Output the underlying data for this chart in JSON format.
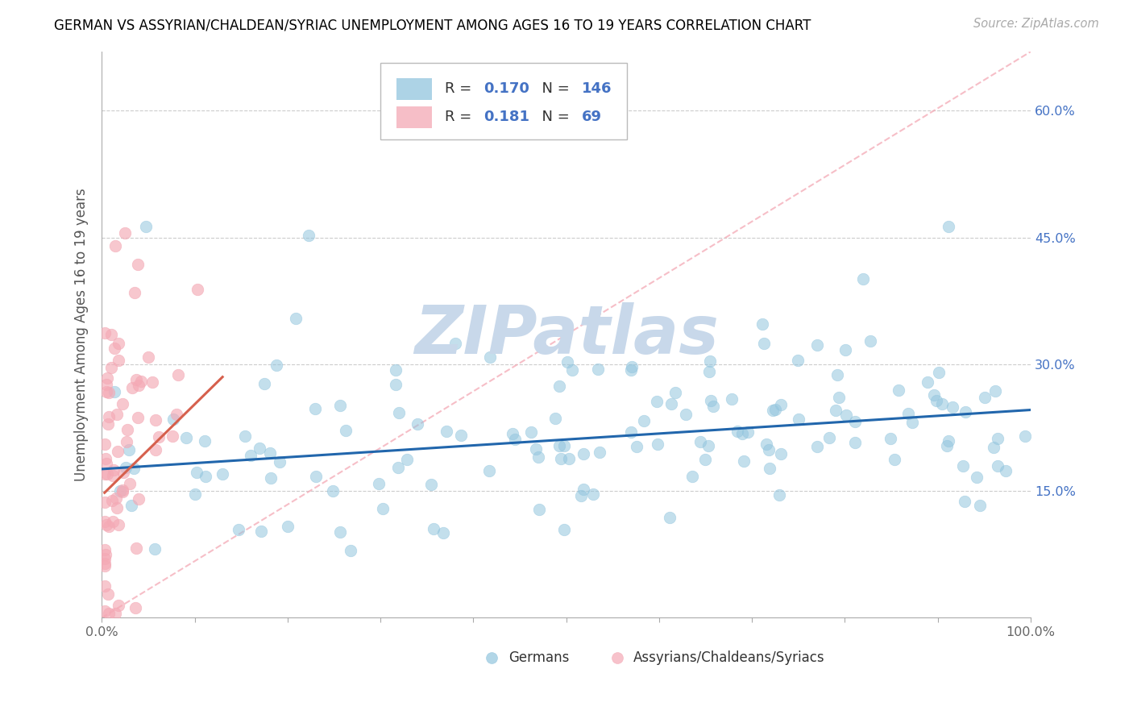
{
  "title": "GERMAN VS ASSYRIAN/CHALDEAN/SYRIAC UNEMPLOYMENT AMONG AGES 16 TO 19 YEARS CORRELATION CHART",
  "source": "Source: ZipAtlas.com",
  "ylabel": "Unemployment Among Ages 16 to 19 years",
  "xlim": [
    0,
    1.0
  ],
  "ylim": [
    0,
    0.67
  ],
  "ytick_positions": [
    0.15,
    0.3,
    0.45,
    0.6
  ],
  "ytick_labels": [
    "15.0%",
    "30.0%",
    "45.0%",
    "60.0%"
  ],
  "xtick_positions": [
    0.0,
    0.1,
    0.2,
    0.3,
    0.4,
    0.5,
    0.6,
    0.7,
    0.8,
    0.9,
    1.0
  ],
  "xticklabels_show": {
    "0.0": "0.0%",
    "1.0": "100.0%"
  },
  "german_color": "#92c5de",
  "assyrian_color": "#f4a9b5",
  "german_line_color": "#2166ac",
  "assyrian_line_color": "#d6604d",
  "dashed_line_color": "#f4a9b5",
  "legend_value_color": "#4472c4",
  "R_german": 0.17,
  "N_german": 146,
  "R_assyrian": 0.181,
  "N_assyrian": 69,
  "watermark_color": "#c8d8ea",
  "legend_label_german": "Germans",
  "legend_label_assyrian": "Assyrians/Chaldeans/Syriacs",
  "blue_trendline_x": [
    0.0,
    1.0
  ],
  "blue_trendline_y": [
    0.176,
    0.246
  ],
  "pink_trendline_x": [
    0.003,
    0.13
  ],
  "pink_trendline_y": [
    0.148,
    0.285
  ],
  "dashed_line_x": [
    0.0,
    1.0
  ],
  "dashed_line_y": [
    0.0,
    0.67
  ]
}
